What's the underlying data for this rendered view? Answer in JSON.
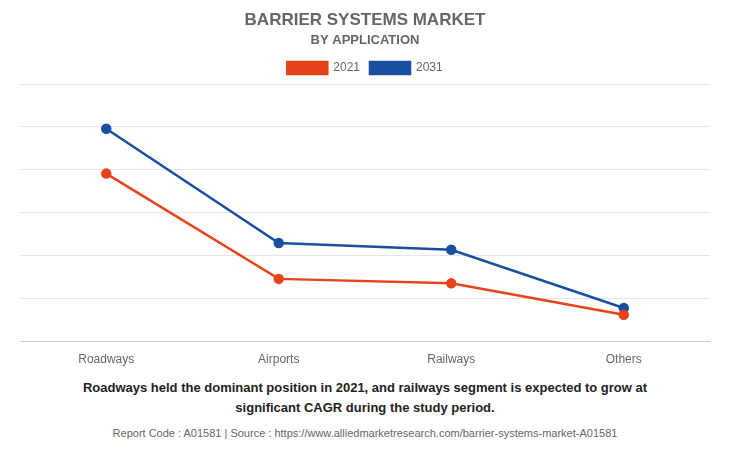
{
  "chart_data": {
    "type": "line",
    "title": "BARRIER SYSTEMS MARKET",
    "subtitle": "BY APPLICATION",
    "categories": [
      "Roadways",
      "Airports",
      "Railways",
      "Others"
    ],
    "series": [
      {
        "name": "2021",
        "color": "#E8431A",
        "values": [
          75,
          28,
          26,
          12
        ],
        "marker": "circle",
        "line_style": "solid"
      },
      {
        "name": "2031",
        "color": "#1A4FA0",
        "values": [
          95,
          44,
          41,
          15
        ],
        "marker": "circle",
        "line_style": "solid"
      }
    ],
    "ylim": [
      0,
      115
    ],
    "yticks": [
      0,
      19.166666666666668,
      38.333333333333336,
      57.5,
      76.66666666666667,
      95.83333333333333,
      115
    ],
    "grid": true,
    "legend": "top",
    "tick_labels": "x",
    "annotation": "Roadways held the dominant position in 2021, and railways segment is expected to grow at\nsignificant CAGR during the study period.",
    "footer": "Report Code : A01581  |  Source : https://www.alliedmarketresearch.com/barrier-systems-market-A01581"
  }
}
